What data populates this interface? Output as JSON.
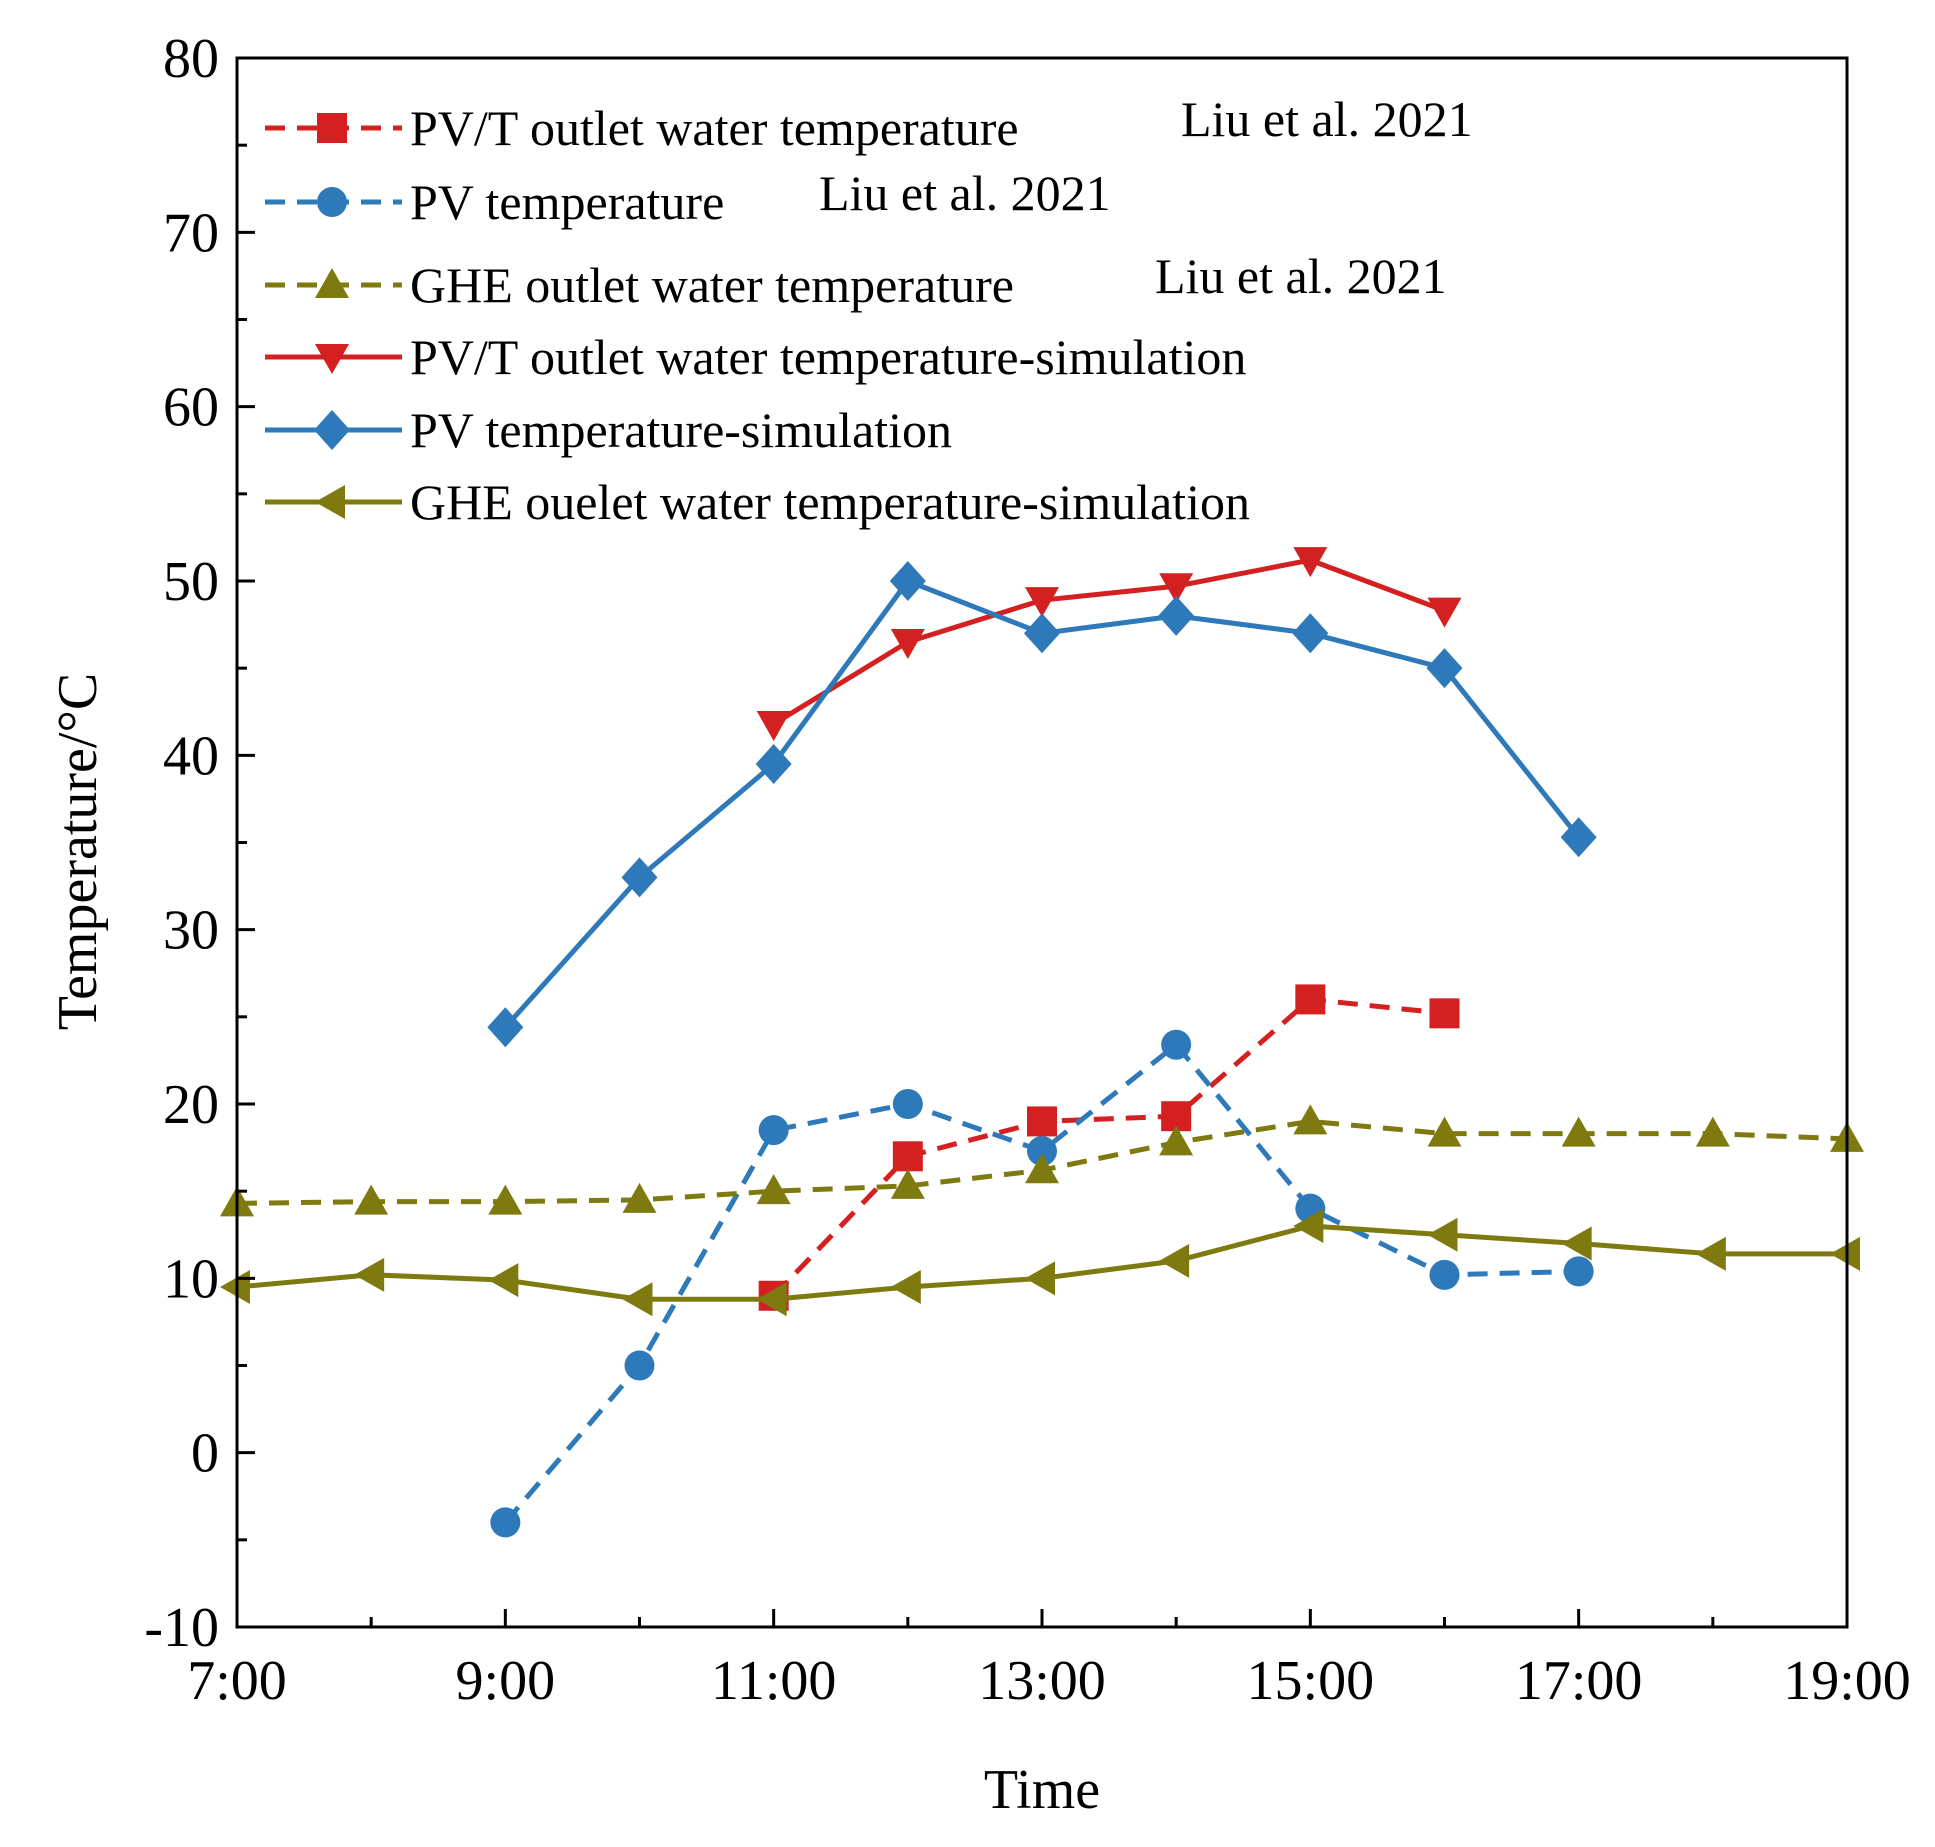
{
  "chart_data": {
    "type": "line",
    "title": "",
    "xlabel": "Time",
    "ylabel": "Temperature/°C",
    "xlim": [
      7,
      19
    ],
    "ylim": [
      -10,
      80
    ],
    "xticks": [
      {
        "value": 7,
        "label": "7:00"
      },
      {
        "value": 9,
        "label": "9:00"
      },
      {
        "value": 11,
        "label": "11:00"
      },
      {
        "value": 13,
        "label": "13:00"
      },
      {
        "value": 15,
        "label": "15:00"
      },
      {
        "value": 17,
        "label": "17:00"
      },
      {
        "value": 19,
        "label": "19:00"
      }
    ],
    "yticks": [
      {
        "value": -10,
        "label": "-10"
      },
      {
        "value": 0,
        "label": "0"
      },
      {
        "value": 10,
        "label": "10"
      },
      {
        "value": 20,
        "label": "20"
      },
      {
        "value": 30,
        "label": "30"
      },
      {
        "value": 40,
        "label": "40"
      },
      {
        "value": 50,
        "label": "50"
      },
      {
        "value": 60,
        "label": "60"
      },
      {
        "value": 70,
        "label": "70"
      },
      {
        "value": 80,
        "label": "80"
      }
    ],
    "legend_position": "top-left",
    "grid": false,
    "series": [
      {
        "name": "PV/T outlet water temperature",
        "source": "Liu et al. 2021",
        "color": "#d42020",
        "dash": "dashed",
        "marker": "square",
        "x": [
          11,
          12,
          13,
          14,
          15,
          16
        ],
        "y": [
          9.0,
          17.0,
          19.0,
          19.3,
          26.0,
          25.2
        ]
      },
      {
        "name": "PV temperature",
        "source": "Liu et al. 2021",
        "color": "#2e79b9",
        "dash": "dashed",
        "marker": "circle",
        "x": [
          9,
          10,
          11,
          12,
          13,
          14,
          15,
          16,
          17
        ],
        "y": [
          -4.0,
          5.0,
          18.5,
          20.0,
          17.3,
          23.4,
          14.0,
          10.2,
          10.4
        ]
      },
      {
        "name": "GHE outlet water temperature",
        "source": "Liu et al. 2021",
        "color": "#7f7a10",
        "dash": "dashed",
        "marker": "triangle-up",
        "x": [
          7,
          8,
          9,
          10,
          11,
          12,
          13,
          14,
          15,
          16,
          17,
          18,
          19
        ],
        "y": [
          14.3,
          14.4,
          14.4,
          14.5,
          15.0,
          15.3,
          16.2,
          17.8,
          19.0,
          18.3,
          18.3,
          18.3,
          18.0
        ]
      },
      {
        "name": "PV/T outlet water temperature-simulation",
        "source": "",
        "color": "#d42020",
        "dash": "solid",
        "marker": "triangle-down",
        "x": [
          11,
          12,
          13,
          14,
          15,
          16
        ],
        "y": [
          41.8,
          46.5,
          48.9,
          49.7,
          51.2,
          48.3
        ]
      },
      {
        "name": "PV temperature-simulation",
        "source": "",
        "color": "#2e79b9",
        "dash": "solid",
        "marker": "diamond",
        "x": [
          9,
          10,
          11,
          12,
          13,
          14,
          15,
          16,
          17
        ],
        "y": [
          24.4,
          33.0,
          39.5,
          50.0,
          47.0,
          48.0,
          47.0,
          45.0,
          35.3
        ]
      },
      {
        "name": "GHE ouelet water temperature-simulation",
        "source": "",
        "color": "#7f7a10",
        "dash": "solid",
        "marker": "triangle-left",
        "x": [
          7,
          8,
          9,
          10,
          11,
          12,
          13,
          14,
          15,
          16,
          17,
          18,
          19
        ],
        "y": [
          9.5,
          10.2,
          9.9,
          8.8,
          8.8,
          9.5,
          10.0,
          11.0,
          13.0,
          12.5,
          12.0,
          11.4,
          11.4
        ]
      }
    ]
  }
}
